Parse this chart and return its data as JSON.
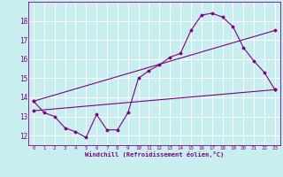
{
  "xlabel": "Windchill (Refroidissement éolien,°C)",
  "bg_color": "#c8eef0",
  "line_color": "#800080",
  "grid_color": "#ffffff",
  "xlim": [
    -0.5,
    23.5
  ],
  "ylim": [
    11.5,
    19.0
  ],
  "xticks": [
    0,
    1,
    2,
    3,
    4,
    5,
    6,
    7,
    8,
    9,
    10,
    11,
    12,
    13,
    14,
    15,
    16,
    17,
    18,
    19,
    20,
    21,
    22,
    23
  ],
  "yticks": [
    12,
    13,
    14,
    15,
    16,
    17,
    18
  ],
  "series1_x": [
    0,
    1,
    2,
    3,
    4,
    5,
    6,
    7,
    8,
    9,
    10,
    11,
    12,
    13,
    14,
    15,
    16,
    17,
    18,
    19,
    20,
    21,
    22,
    23
  ],
  "series1_y": [
    13.8,
    13.2,
    13.0,
    12.4,
    12.2,
    11.9,
    13.1,
    12.3,
    12.3,
    13.2,
    15.0,
    15.4,
    15.7,
    16.1,
    16.3,
    17.5,
    18.3,
    18.4,
    18.2,
    17.7,
    16.6,
    15.9,
    15.3,
    14.4
  ],
  "series2_x": [
    0,
    23
  ],
  "series2_y": [
    13.3,
    14.4
  ],
  "series3_x": [
    0,
    23
  ],
  "series3_y": [
    13.8,
    17.5
  ]
}
